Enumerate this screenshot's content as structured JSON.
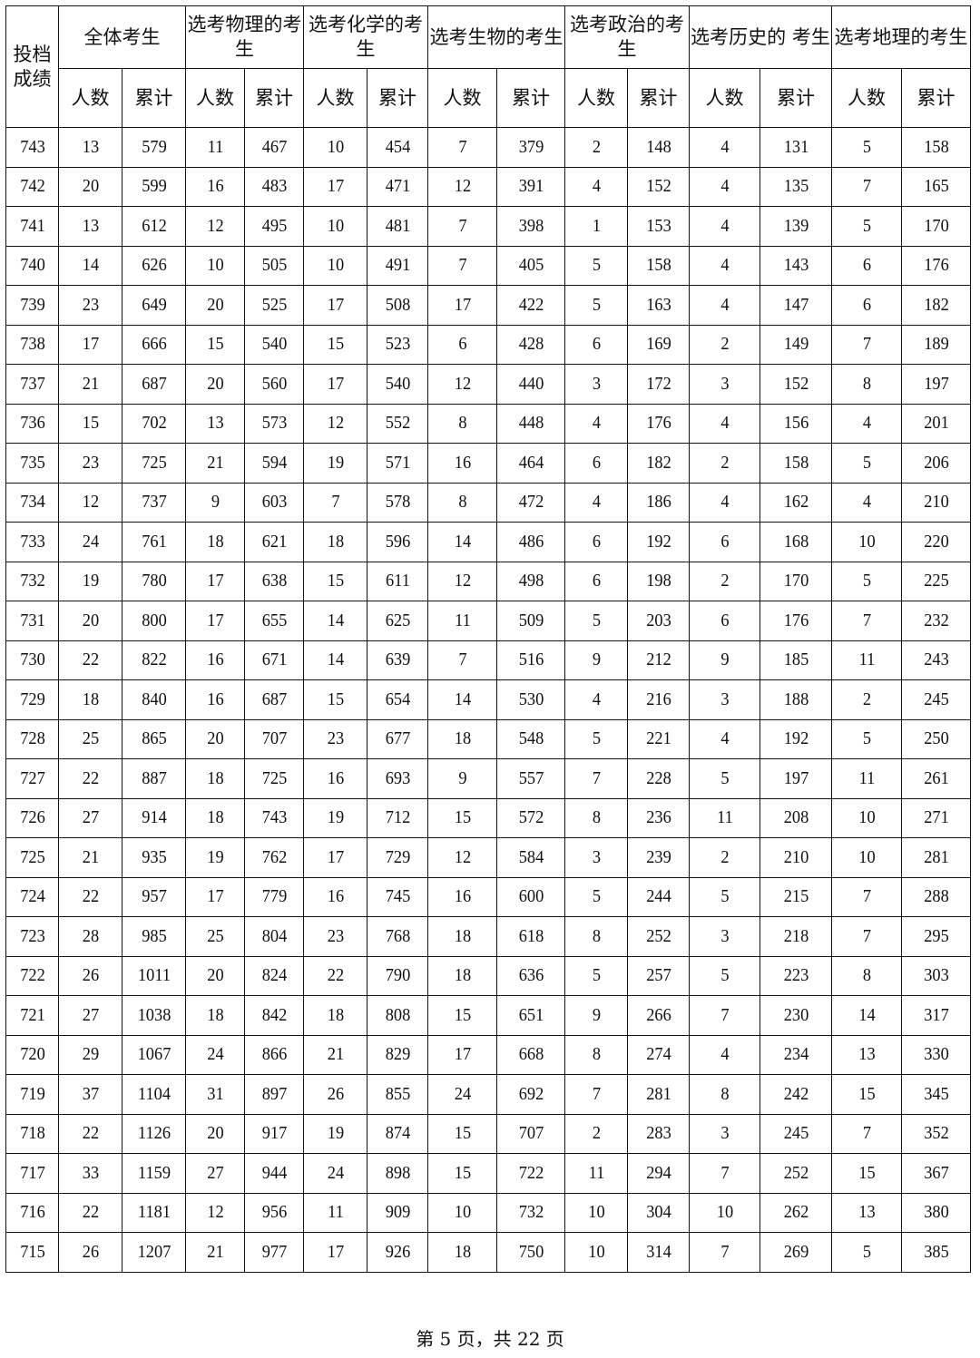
{
  "table": {
    "score_header": "投档成绩",
    "groups": [
      "全体考生",
      "选考物理的考生",
      "选考化学的考生",
      "选考生物的考生",
      "选考政治的考生",
      "选考历史的 考生",
      "选考地理的考生"
    ],
    "sub_headers": [
      "人数",
      "累计"
    ],
    "rows": [
      [
        743,
        13,
        579,
        11,
        467,
        10,
        454,
        7,
        379,
        2,
        148,
        4,
        131,
        5,
        158
      ],
      [
        742,
        20,
        599,
        16,
        483,
        17,
        471,
        12,
        391,
        4,
        152,
        4,
        135,
        7,
        165
      ],
      [
        741,
        13,
        612,
        12,
        495,
        10,
        481,
        7,
        398,
        1,
        153,
        4,
        139,
        5,
        170
      ],
      [
        740,
        14,
        626,
        10,
        505,
        10,
        491,
        7,
        405,
        5,
        158,
        4,
        143,
        6,
        176
      ],
      [
        739,
        23,
        649,
        20,
        525,
        17,
        508,
        17,
        422,
        5,
        163,
        4,
        147,
        6,
        182
      ],
      [
        738,
        17,
        666,
        15,
        540,
        15,
        523,
        6,
        428,
        6,
        169,
        2,
        149,
        7,
        189
      ],
      [
        737,
        21,
        687,
        20,
        560,
        17,
        540,
        12,
        440,
        3,
        172,
        3,
        152,
        8,
        197
      ],
      [
        736,
        15,
        702,
        13,
        573,
        12,
        552,
        8,
        448,
        4,
        176,
        4,
        156,
        4,
        201
      ],
      [
        735,
        23,
        725,
        21,
        594,
        19,
        571,
        16,
        464,
        6,
        182,
        2,
        158,
        5,
        206
      ],
      [
        734,
        12,
        737,
        9,
        603,
        7,
        578,
        8,
        472,
        4,
        186,
        4,
        162,
        4,
        210
      ],
      [
        733,
        24,
        761,
        18,
        621,
        18,
        596,
        14,
        486,
        6,
        192,
        6,
        168,
        10,
        220
      ],
      [
        732,
        19,
        780,
        17,
        638,
        15,
        611,
        12,
        498,
        6,
        198,
        2,
        170,
        5,
        225
      ],
      [
        731,
        20,
        800,
        17,
        655,
        14,
        625,
        11,
        509,
        5,
        203,
        6,
        176,
        7,
        232
      ],
      [
        730,
        22,
        822,
        16,
        671,
        14,
        639,
        7,
        516,
        9,
        212,
        9,
        185,
        11,
        243
      ],
      [
        729,
        18,
        840,
        16,
        687,
        15,
        654,
        14,
        530,
        4,
        216,
        3,
        188,
        2,
        245
      ],
      [
        728,
        25,
        865,
        20,
        707,
        23,
        677,
        18,
        548,
        5,
        221,
        4,
        192,
        5,
        250
      ],
      [
        727,
        22,
        887,
        18,
        725,
        16,
        693,
        9,
        557,
        7,
        228,
        5,
        197,
        11,
        261
      ],
      [
        726,
        27,
        914,
        18,
        743,
        19,
        712,
        15,
        572,
        8,
        236,
        11,
        208,
        10,
        271
      ],
      [
        725,
        21,
        935,
        19,
        762,
        17,
        729,
        12,
        584,
        3,
        239,
        2,
        210,
        10,
        281
      ],
      [
        724,
        22,
        957,
        17,
        779,
        16,
        745,
        16,
        600,
        5,
        244,
        5,
        215,
        7,
        288
      ],
      [
        723,
        28,
        985,
        25,
        804,
        23,
        768,
        18,
        618,
        8,
        252,
        3,
        218,
        7,
        295
      ],
      [
        722,
        26,
        1011,
        20,
        824,
        22,
        790,
        18,
        636,
        5,
        257,
        5,
        223,
        8,
        303
      ],
      [
        721,
        27,
        1038,
        18,
        842,
        18,
        808,
        15,
        651,
        9,
        266,
        7,
        230,
        14,
        317
      ],
      [
        720,
        29,
        1067,
        24,
        866,
        21,
        829,
        17,
        668,
        8,
        274,
        4,
        234,
        13,
        330
      ],
      [
        719,
        37,
        1104,
        31,
        897,
        26,
        855,
        24,
        692,
        7,
        281,
        8,
        242,
        15,
        345
      ],
      [
        718,
        22,
        1126,
        20,
        917,
        19,
        874,
        15,
        707,
        2,
        283,
        3,
        245,
        7,
        352
      ],
      [
        717,
        33,
        1159,
        27,
        944,
        24,
        898,
        15,
        722,
        11,
        294,
        7,
        252,
        15,
        367
      ],
      [
        716,
        22,
        1181,
        12,
        956,
        11,
        909,
        10,
        732,
        10,
        304,
        10,
        262,
        13,
        380
      ],
      [
        715,
        26,
        1207,
        21,
        977,
        17,
        926,
        18,
        750,
        10,
        314,
        7,
        269,
        5,
        385
      ]
    ]
  },
  "footer": {
    "page_text": "第 5 页，共 22 页"
  }
}
